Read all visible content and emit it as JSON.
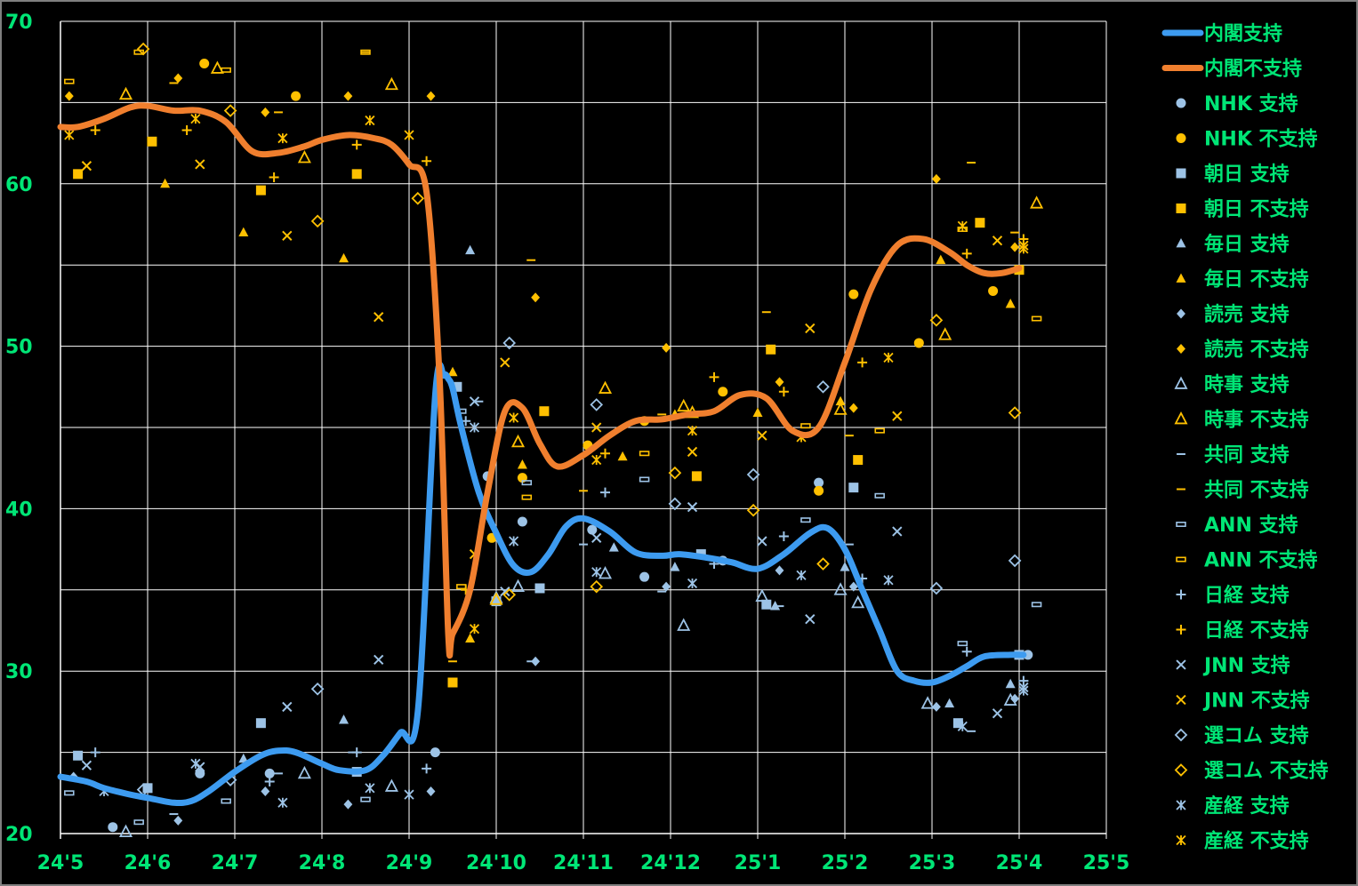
{
  "chart_data": {
    "type": "line",
    "title": "",
    "xlabel": "",
    "ylabel": "",
    "ylim": [
      20,
      70
    ],
    "yticks": [
      "20",
      "30",
      "40",
      "50",
      "60",
      "70"
    ],
    "xticks": [
      "24'5",
      "24'6",
      "24'7",
      "24'8",
      "24'9",
      "24'10",
      "24'11",
      "24'12",
      "25'1",
      "25'2",
      "25'3",
      "25'4",
      "25'5"
    ],
    "grid": true,
    "legend_position": "right",
    "colors": {
      "support": "#3d9bf0",
      "disapprove": "#f07f2e",
      "support_marker": "#9dc3e6",
      "disapprove_marker": "#ffc000",
      "text": "#00e676",
      "grid": "#ffffff",
      "background": "#000000"
    },
    "series": [
      {
        "name": "内閣支持",
        "kind": "line",
        "color": "#3d9bf0",
        "x": [
          0,
          0.3,
          0.5,
          0.8,
          1.0,
          1.3,
          1.5,
          1.7,
          2.0,
          2.3,
          2.5,
          2.7,
          3.0,
          3.2,
          3.5,
          3.7,
          3.9,
          4.1,
          4.3,
          4.4,
          4.45,
          4.5,
          4.6,
          4.8,
          5.0,
          5.2,
          5.4,
          5.6,
          5.8,
          6.0,
          6.3,
          6.6,
          6.9,
          7.1,
          7.4,
          7.7,
          8.0,
          8.3,
          8.6,
          8.8,
          9.0,
          9.2,
          9.4,
          9.6,
          9.8,
          10.0,
          10.2,
          10.4,
          10.6,
          10.9,
          11.05
        ],
        "y": [
          23.5,
          23.2,
          22.8,
          22.4,
          22.2,
          21.9,
          22.0,
          22.6,
          23.8,
          24.8,
          25.1,
          25.0,
          24.3,
          23.9,
          23.9,
          24.8,
          26.2,
          27.5,
          47,
          48.2,
          48.0,
          47.4,
          45.0,
          41.0,
          38.5,
          36.5,
          36.1,
          37.2,
          38.9,
          39.4,
          38.6,
          37.3,
          37.1,
          37.2,
          37.0,
          36.7,
          36.3,
          37.2,
          38.5,
          38.8,
          37.5,
          35.0,
          32.5,
          30.0,
          29.4,
          29.3,
          29.7,
          30.3,
          30.9,
          31.0,
          31.0
        ]
      },
      {
        "name": "内閣不支持",
        "kind": "line",
        "color": "#f07f2e",
        "x": [
          0,
          0.2,
          0.5,
          0.8,
          1.0,
          1.3,
          1.6,
          1.9,
          2.2,
          2.5,
          2.8,
          3.0,
          3.3,
          3.6,
          3.8,
          4.0,
          4.2,
          4.35,
          4.45,
          4.5,
          4.7,
          4.9,
          5.1,
          5.3,
          5.5,
          5.7,
          6.0,
          6.3,
          6.6,
          6.9,
          7.2,
          7.5,
          7.8,
          8.1,
          8.4,
          8.7,
          9.0,
          9.3,
          9.6,
          9.9,
          10.2,
          10.4,
          10.6,
          10.8,
          11.0
        ],
        "y": [
          63.5,
          63.5,
          64.0,
          64.7,
          64.8,
          64.5,
          64.5,
          63.8,
          62.0,
          61.9,
          62.3,
          62.7,
          63.0,
          62.8,
          62.4,
          61.2,
          59.5,
          48.0,
          32.2,
          32.3,
          35.0,
          41.0,
          46.0,
          46.2,
          44.0,
          42.6,
          43.3,
          44.5,
          45.4,
          45.5,
          45.8,
          46.0,
          47.0,
          46.8,
          44.8,
          45.0,
          49.0,
          53.5,
          56.2,
          56.6,
          55.8,
          55.0,
          54.5,
          54.5,
          54.8
        ]
      },
      {
        "name": "NHK 支持",
        "kind": "scatter",
        "marker": "circle",
        "color": "#9dc3e6",
        "x": [
          0.6,
          1.6,
          2.4,
          4.3,
          4.9,
          5.3,
          6.1,
          6.7,
          7.6,
          8.7,
          11.1
        ],
        "y": [
          20.4,
          23.7,
          23.7,
          25.0,
          42.0,
          39.2,
          38.7,
          35.8,
          36.8,
          41.6,
          31.0
        ]
      },
      {
        "name": "NHK 不支持",
        "kind": "scatter",
        "marker": "circle",
        "color": "#ffc000",
        "x": [
          1.65,
          2.7,
          4.95,
          5.3,
          6.05,
          6.7,
          7.6,
          8.7,
          9.1,
          9.85,
          10.7
        ],
        "y": [
          67.4,
          65.4,
          38.2,
          41.9,
          43.9,
          45.4,
          47.2,
          41.1,
          53.2,
          50.2,
          53.4
        ]
      },
      {
        "name": "朝日 支持",
        "kind": "scatter",
        "marker": "square",
        "color": "#9dc3e6",
        "x": [
          0.2,
          1.0,
          2.3,
          3.4,
          4.55,
          5.0,
          5.5,
          7.35,
          8.1,
          9.1,
          10.3,
          11.0
        ],
        "y": [
          24.8,
          22.8,
          26.8,
          23.8,
          47.5,
          34.3,
          35.1,
          37.2,
          34.1,
          41.3,
          26.8,
          31.0
        ]
      },
      {
        "name": "朝日 不支持",
        "kind": "scatter",
        "marker": "square",
        "color": "#ffc000",
        "x": [
          0.2,
          1.05,
          2.3,
          3.4,
          4.5,
          5.55,
          7.3,
          8.15,
          9.15,
          10.55,
          11.0
        ],
        "y": [
          60.6,
          62.6,
          59.6,
          60.6,
          29.3,
          46.0,
          42.0,
          49.8,
          43.0,
          57.6,
          54.7
        ]
      },
      {
        "name": "毎日 支持",
        "kind": "scatter",
        "marker": "triangle",
        "color": "#9dc3e6",
        "x": [
          2.1,
          3.25,
          4.7,
          6.35,
          7.05,
          8.2,
          9.0,
          10.2,
          10.9
        ],
        "y": [
          24.6,
          27.0,
          55.9,
          37.6,
          36.4,
          34.0,
          36.4,
          28.0,
          29.2
        ]
      },
      {
        "name": "毎日 不支持",
        "kind": "scatter",
        "marker": "triangle",
        "color": "#ffc000",
        "x": [
          1.2,
          2.1,
          3.25,
          4.5,
          4.7,
          5.3,
          6.45,
          7.05,
          8.0,
          8.95,
          10.1,
          10.9
        ],
        "y": [
          60.0,
          57.0,
          55.4,
          48.4,
          32.0,
          42.7,
          43.2,
          45.8,
          45.9,
          46.6,
          55.3,
          52.6
        ]
      },
      {
        "name": "読売 支持",
        "kind": "scatter",
        "marker": "diamond",
        "color": "#9dc3e6",
        "x": [
          0.15,
          1.35,
          2.35,
          3.3,
          4.25,
          5.45,
          6.95,
          8.25,
          9.1,
          10.05,
          10.95
        ],
        "y": [
          23.5,
          20.8,
          22.6,
          21.8,
          22.6,
          30.6,
          35.2,
          36.2,
          35.2,
          27.8,
          28.3
        ]
      },
      {
        "name": "読売 不支持",
        "kind": "scatter",
        "marker": "diamond",
        "color": "#ffc000",
        "x": [
          0.1,
          1.35,
          2.35,
          3.3,
          4.25,
          5.45,
          6.95,
          8.25,
          9.1,
          10.05,
          10.95
        ],
        "y": [
          65.4,
          66.5,
          64.4,
          65.4,
          65.4,
          53.0,
          49.9,
          47.8,
          46.2,
          60.3,
          56.1
        ]
      },
      {
        "name": "時事 支持",
        "kind": "scatter",
        "marker": "triangle-open",
        "color": "#9dc3e6",
        "x": [
          0.75,
          2.8,
          3.8,
          5.0,
          5.25,
          6.25,
          7.15,
          8.05,
          8.95,
          9.15,
          9.95,
          10.9
        ],
        "y": [
          20.1,
          23.7,
          22.9,
          34.5,
          35.2,
          36.0,
          32.8,
          34.6,
          35.0,
          34.2,
          28.0,
          28.2
        ]
      },
      {
        "name": "時事 不支持",
        "kind": "scatter",
        "marker": "triangle-open",
        "color": "#ffc000",
        "x": [
          0.75,
          1.8,
          2.8,
          3.8,
          5.0,
          5.25,
          6.25,
          7.25,
          7.15,
          8.95,
          10.15,
          11.2
        ],
        "y": [
          65.5,
          67.1,
          61.6,
          66.1,
          34.4,
          44.1,
          47.4,
          45.9,
          46.3,
          46.1,
          50.7,
          58.8
        ]
      },
      {
        "name": "共同 支持",
        "kind": "scatter",
        "marker": "dash",
        "color": "#9dc3e6",
        "x": [
          1.3,
          2.5,
          3.35,
          4.8,
          5.4,
          6.0,
          6.9,
          8.25,
          9.05,
          10.45,
          10.95
        ],
        "y": [
          21.2,
          23.7,
          25.0,
          46.6,
          30.6,
          37.8,
          34.9,
          34.0,
          37.8,
          26.3,
          31.0
        ]
      },
      {
        "name": "共同 不支持",
        "kind": "scatter",
        "marker": "dash",
        "color": "#ffc000",
        "x": [
          1.3,
          2.5,
          3.5,
          4.5,
          5.4,
          6.0,
          6.9,
          8.1,
          9.05,
          10.45,
          10.95
        ],
        "y": [
          66.2,
          64.4,
          68.1,
          30.6,
          55.3,
          41.1,
          45.8,
          52.1,
          44.5,
          61.3,
          57.0
        ]
      },
      {
        "name": "ANN 支持",
        "kind": "scatter",
        "marker": "rect-open",
        "color": "#9dc3e6",
        "x": [
          0.1,
          0.9,
          1.9,
          3.5,
          4.6,
          5.35,
          6.7,
          8.55,
          9.4,
          10.35,
          11.2
        ],
        "y": [
          22.5,
          20.7,
          22.0,
          22.1,
          46.0,
          41.6,
          41.8,
          39.3,
          40.8,
          31.7,
          34.1
        ]
      },
      {
        "name": "ANN 不支持",
        "kind": "scatter",
        "marker": "rect-open",
        "color": "#ffc000",
        "x": [
          0.1,
          0.9,
          1.9,
          3.5,
          4.6,
          5.35,
          6.7,
          8.55,
          9.4,
          10.35,
          11.2
        ],
        "y": [
          66.3,
          68.1,
          67.0,
          68.1,
          35.2,
          40.7,
          43.4,
          45.1,
          44.8,
          57.2,
          51.7
        ]
      },
      {
        "name": "日経 支持",
        "kind": "scatter",
        "marker": "plus",
        "color": "#9dc3e6",
        "x": [
          0.4,
          2.4,
          3.4,
          4.2,
          4.65,
          6.25,
          7.5,
          8.3,
          9.2,
          10.4,
          11.05
        ],
        "y": [
          25.0,
          23.2,
          25.0,
          24.0,
          45.4,
          41.0,
          36.6,
          38.3,
          35.7,
          31.2,
          29.4
        ]
      },
      {
        "name": "日経 不支持",
        "kind": "scatter",
        "marker": "plus",
        "color": "#ffc000",
        "x": [
          0.4,
          1.45,
          2.45,
          3.4,
          4.2,
          4.65,
          6.25,
          7.5,
          8.3,
          9.2,
          10.4,
          11.05
        ],
        "y": [
          63.3,
          63.3,
          60.4,
          62.4,
          61.4,
          35.0,
          43.4,
          48.1,
          47.2,
          49.0,
          55.7,
          56.6
        ]
      },
      {
        "name": "JNN 支持",
        "kind": "scatter",
        "marker": "x",
        "color": "#9dc3e6",
        "x": [
          0.3,
          1.6,
          2.6,
          3.65,
          4.75,
          5.1,
          6.15,
          7.25,
          8.05,
          8.6,
          9.6,
          10.75,
          11.05
        ],
        "y": [
          24.2,
          24.1,
          27.8,
          30.7,
          46.6,
          34.9,
          38.2,
          40.1,
          38.0,
          33.2,
          38.6,
          27.4,
          29.0
        ]
      },
      {
        "name": "JNN 不支持",
        "kind": "scatter",
        "marker": "x",
        "color": "#ffc000",
        "x": [
          0.3,
          1.6,
          2.6,
          3.65,
          4.75,
          5.1,
          6.15,
          7.25,
          8.05,
          8.6,
          9.6,
          10.75,
          11.05
        ],
        "y": [
          61.1,
          61.2,
          56.8,
          51.8,
          37.2,
          49.0,
          45.0,
          43.5,
          44.5,
          51.1,
          45.7,
          56.5,
          56.2
        ]
      },
      {
        "name": "選コム 支持",
        "kind": "scatter",
        "marker": "diamond-open",
        "color": "#9dc3e6",
        "x": [
          0.95,
          1.95,
          2.95,
          5.15,
          6.15,
          7.05,
          7.95,
          8.75,
          10.05,
          10.95
        ],
        "y": [
          22.7,
          23.3,
          28.9,
          50.2,
          46.4,
          40.3,
          42.1,
          47.5,
          35.1,
          36.8
        ]
      },
      {
        "name": "選コム 不支持",
        "kind": "scatter",
        "marker": "diamond-open",
        "color": "#ffc000",
        "x": [
          0.95,
          1.95,
          2.95,
          4.1,
          5.15,
          6.15,
          7.05,
          7.95,
          8.75,
          10.05,
          10.95
        ],
        "y": [
          68.3,
          64.5,
          57.7,
          59.1,
          34.7,
          35.2,
          42.2,
          39.9,
          36.6,
          51.6,
          45.9
        ]
      },
      {
        "name": "産経 支持",
        "kind": "scatter",
        "marker": "star",
        "color": "#9dc3e6",
        "x": [
          0.5,
          1.55,
          2.55,
          3.55,
          4.0,
          4.75,
          5.2,
          6.15,
          7.25,
          8.5,
          9.5,
          10.35,
          11.05
        ],
        "y": [
          22.6,
          24.3,
          21.9,
          22.8,
          22.4,
          45.0,
          38.0,
          36.1,
          35.4,
          35.9,
          35.6,
          26.6,
          28.8
        ]
      },
      {
        "name": "産経 不支持",
        "kind": "scatter",
        "marker": "star",
        "color": "#ffc000",
        "x": [
          0.1,
          1.55,
          2.55,
          3.55,
          4.0,
          4.75,
          5.2,
          6.15,
          7.25,
          8.5,
          9.5,
          10.35,
          11.05
        ],
        "y": [
          63.0,
          64.0,
          62.8,
          63.9,
          63.0,
          32.6,
          45.6,
          43.0,
          44.8,
          44.4,
          49.3,
          57.4,
          56.0
        ]
      }
    ]
  }
}
